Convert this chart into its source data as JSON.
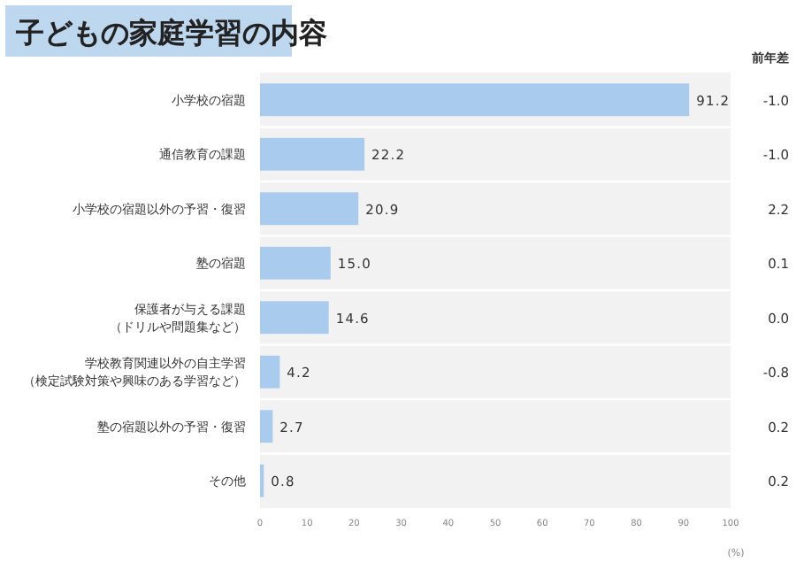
{
  "chart_data": {
    "type": "bar",
    "orientation": "horizontal",
    "title": "子どもの家庭学習の内容",
    "categories": [
      "小学校の宿題",
      "通信教育の課題",
      "小学校の宿題以外の予習・復習",
      "塾の宿題",
      "保護者が与える課題（ドリルや問題集など）",
      "学校教育関連以外の自主学習（検定試験対策や興味のある学習など）",
      "塾の宿題以外の予習・復習",
      "その他"
    ],
    "values": [
      91.2,
      22.2,
      20.9,
      15.0,
      14.6,
      4.2,
      2.7,
      0.8
    ],
    "value_labels": [
      "91.2",
      "22.2",
      "20.9",
      "15.0",
      "14.6",
      "4.2",
      "2.7",
      "0.8"
    ],
    "color": "#a9cbee",
    "xlim": [
      0,
      100
    ],
    "xticks": [
      0,
      10,
      20,
      30,
      40,
      50,
      60,
      70,
      80,
      90,
      100
    ],
    "xlabel": "(%)",
    "annotations": [
      "前年差",
      "-1.0",
      "-1.0",
      "2.2",
      "0.1",
      "0.0",
      "-0.8",
      "0.2",
      "0.2"
    ]
  }
}
